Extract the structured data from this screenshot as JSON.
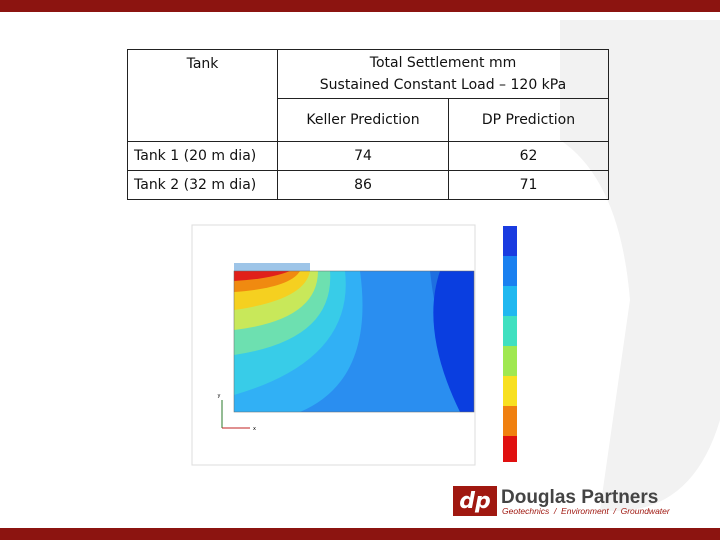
{
  "table": {
    "header": {
      "tank": "Tank",
      "group_line1": "Total Settlement mm",
      "group_line2": "Sustained Constant Load – 120 kPa",
      "keller": "Keller Prediction",
      "dp": "DP Prediction"
    },
    "rows": [
      [
        "Tank 1 (20 m dia)",
        "74",
        "62"
      ],
      [
        "Tank 2 (32 m dia)",
        "86",
        "71"
      ]
    ]
  },
  "plot": {
    "axis_y": "y",
    "axis_x": "x"
  },
  "logo": {
    "name": "Douglas Partners",
    "tagline": "Geotechnics  /  Environment  /  Groundwater"
  }
}
